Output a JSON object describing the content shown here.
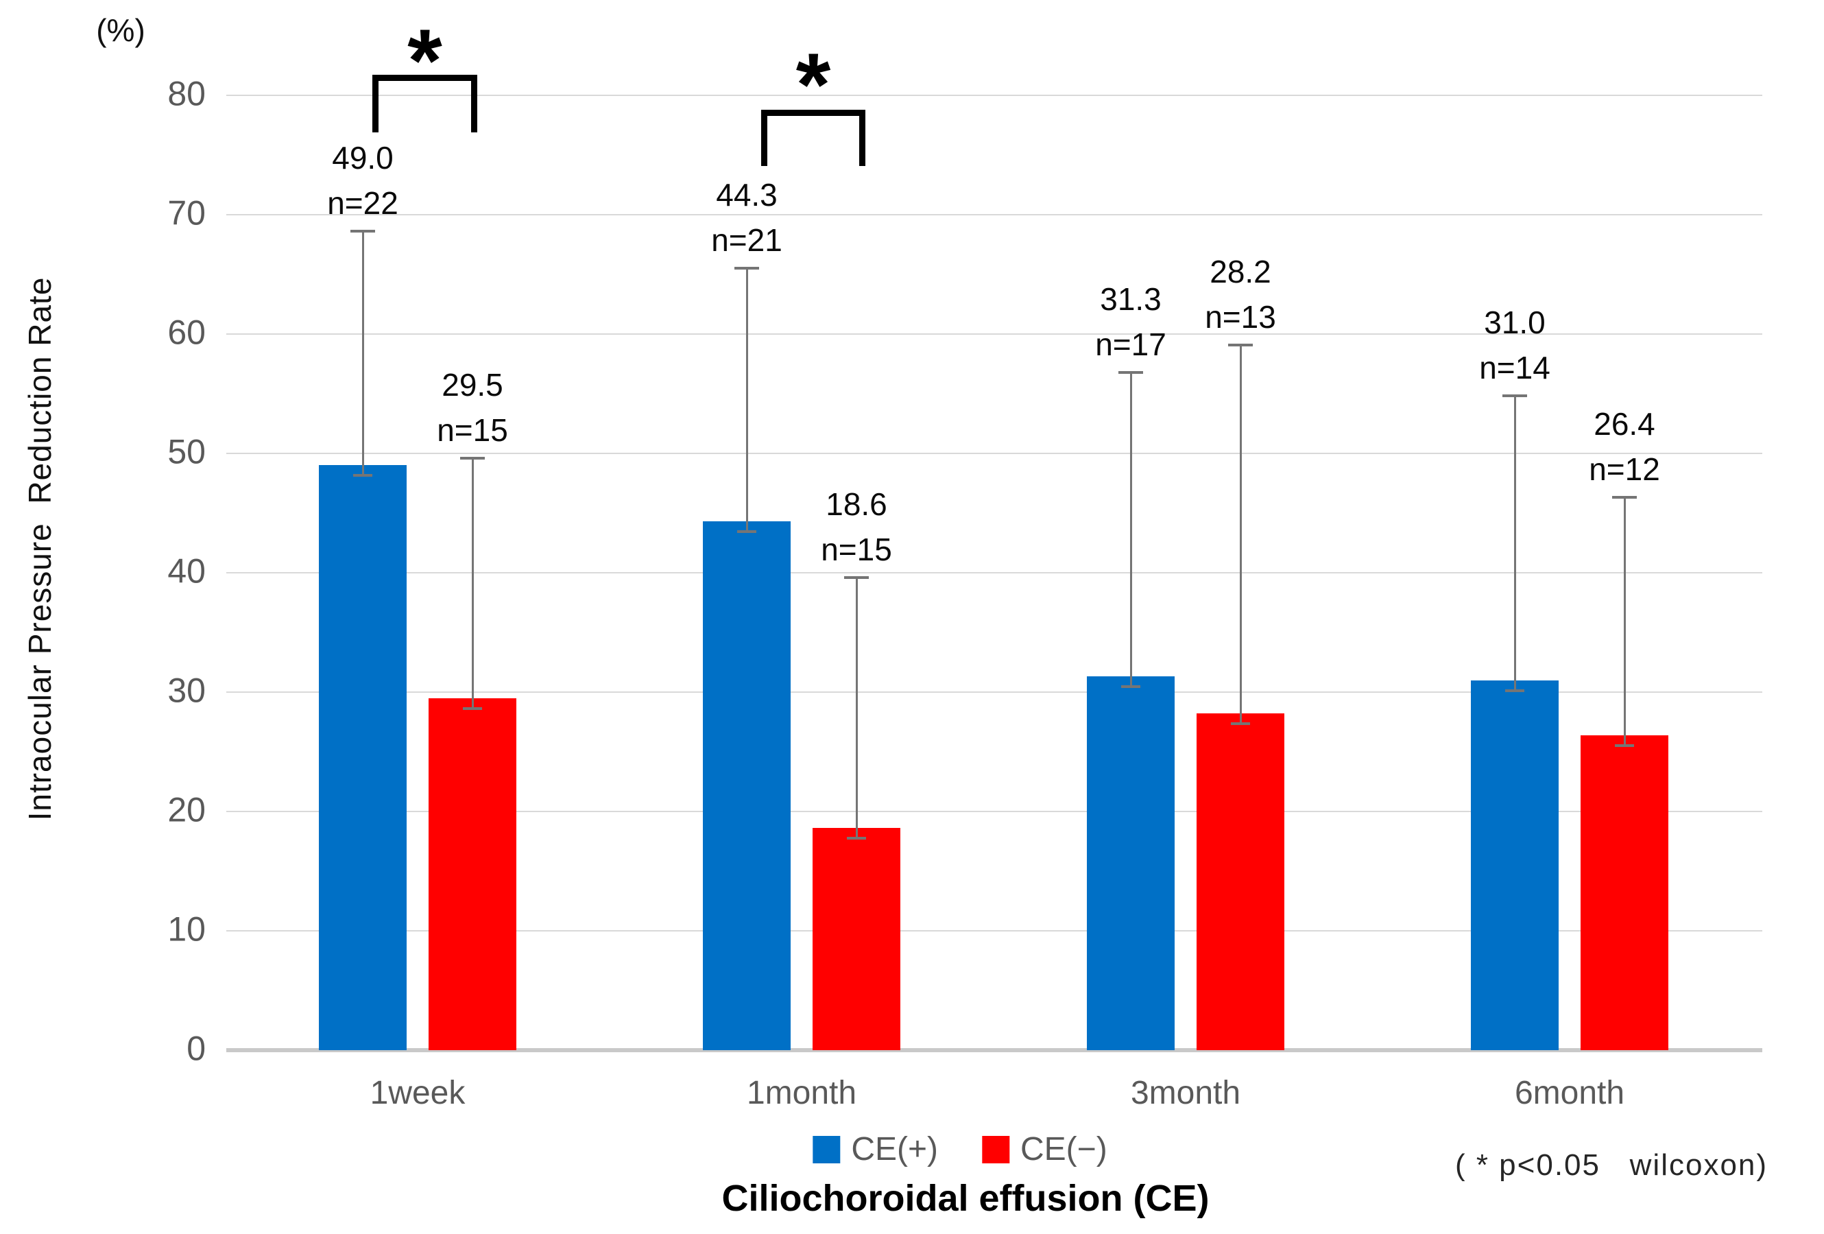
{
  "figure": {
    "percent_label": "(%)",
    "y_axis_title": "Intraocular Pressure  Reduction Rate",
    "x_axis_title": "Ciliochoroidal effusion (CE)",
    "significance_note": "( * p<0.05   wilcoxon)",
    "legend": [
      {
        "label": "CE(+)",
        "color": "#0070C6"
      },
      {
        "label": "CE(−)",
        "color": "#FF0000"
      }
    ]
  },
  "chart_data": {
    "type": "bar",
    "title": "",
    "xlabel": "Ciliochoroidal effusion (CE)",
    "ylabel": "Intraocular Pressure Reduction Rate",
    "y_unit": "%",
    "ylim": [
      0,
      80
    ],
    "yticks": [
      0,
      10,
      20,
      30,
      40,
      50,
      60,
      70,
      80
    ],
    "grid": true,
    "legend_position": "bottom",
    "categories": [
      "1week",
      "1month",
      "3month",
      "6month"
    ],
    "series": [
      {
        "name": "CE(+)",
        "color": "#0070C6",
        "values": [
          49.0,
          44.3,
          31.3,
          31.0
        ],
        "value_labels": [
          "49.0",
          "44.3",
          "31.3",
          "31.0"
        ],
        "n_labels": [
          "n=22",
          "n=21",
          "n=17",
          "n=14"
        ],
        "error_bar_top": [
          68.6,
          65.5,
          56.8,
          54.8
        ]
      },
      {
        "name": "CE(−)",
        "color": "#FF0000",
        "values": [
          29.5,
          18.6,
          28.2,
          26.4
        ],
        "value_labels": [
          "29.5",
          "18.6",
          "28.2",
          "26.4"
        ],
        "n_labels": [
          "n=15",
          "n=15",
          "n=13",
          "n=12"
        ],
        "error_bar_top": [
          49.6,
          39.6,
          59.1,
          46.3
        ]
      }
    ],
    "significance": [
      {
        "category": "1week",
        "label": "*"
      },
      {
        "category": "1month",
        "label": "*"
      }
    ]
  }
}
